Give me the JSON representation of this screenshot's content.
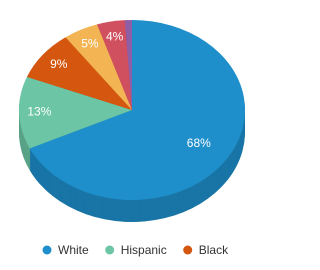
{
  "chart_data": {
    "type": "pie",
    "categories": [
      "White",
      "Hispanic",
      "Black",
      null,
      null,
      null
    ],
    "values": [
      68,
      13,
      9,
      5,
      4,
      1
    ],
    "value_labels": [
      "68%",
      "13%",
      "9%",
      "5%",
      "4%",
      null
    ],
    "colors": [
      "#1e8fcb",
      "#6cc5a5",
      "#d4560f",
      "#f3b553",
      "#d1505f",
      "#8e5ea6"
    ]
  }
}
